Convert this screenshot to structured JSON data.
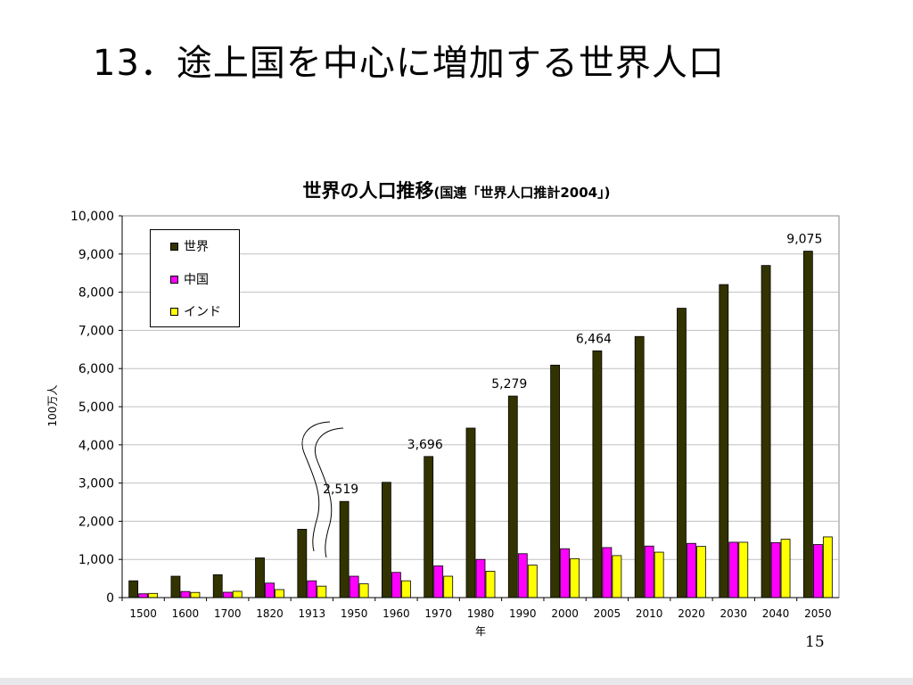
{
  "slide": {
    "title": "13．途上国を中心に増加する世界人口",
    "page_number": "15"
  },
  "chart_data": {
    "type": "bar",
    "title": "世界の人口推移",
    "subtitle": "(国連「世界人口推計2004」)",
    "xlabel": "年",
    "ylabel": "100万人",
    "ylim": [
      0,
      10000
    ],
    "yticks": [
      "0",
      "1,000",
      "2,000",
      "3,000",
      "4,000",
      "5,000",
      "6,000",
      "7,000",
      "8,000",
      "9,000",
      "10,000"
    ],
    "categories": [
      "1500",
      "1600",
      "1700",
      "1820",
      "1913",
      "1950",
      "1960",
      "1970",
      "1980",
      "1990",
      "2000",
      "2005",
      "2010",
      "2020",
      "2030",
      "2040",
      "2050"
    ],
    "series": [
      {
        "name": "世界",
        "color": "#333300",
        "values": [
          440,
          560,
          600,
          1040,
          1790,
          2519,
          3020,
          3696,
          4440,
          5279,
          6090,
          6464,
          6840,
          7580,
          8200,
          8700,
          9075
        ]
      },
      {
        "name": "中国",
        "color": "#ff00ff",
        "values": [
          100,
          160,
          140,
          380,
          440,
          560,
          660,
          830,
          1000,
          1150,
          1280,
          1310,
          1350,
          1420,
          1450,
          1440,
          1390
        ]
      },
      {
        "name": "インド",
        "color": "#ffff00",
        "values": [
          110,
          135,
          165,
          210,
          300,
          360,
          440,
          560,
          690,
          850,
          1020,
          1100,
          1190,
          1340,
          1450,
          1530,
          1590
        ]
      }
    ],
    "data_labels": [
      {
        "category": "1950",
        "series": "世界",
        "text": "2,519"
      },
      {
        "category": "1970",
        "series": "世界",
        "text": "3,696"
      },
      {
        "category": "1990",
        "series": "世界",
        "text": "5,279"
      },
      {
        "category": "2005",
        "series": "世界",
        "text": "6,464"
      },
      {
        "category": "2050",
        "series": "世界",
        "text": "9,075"
      }
    ],
    "grid": true,
    "legend_position": "top-left",
    "axis_break": {
      "between": [
        "1913",
        "1950"
      ]
    }
  }
}
